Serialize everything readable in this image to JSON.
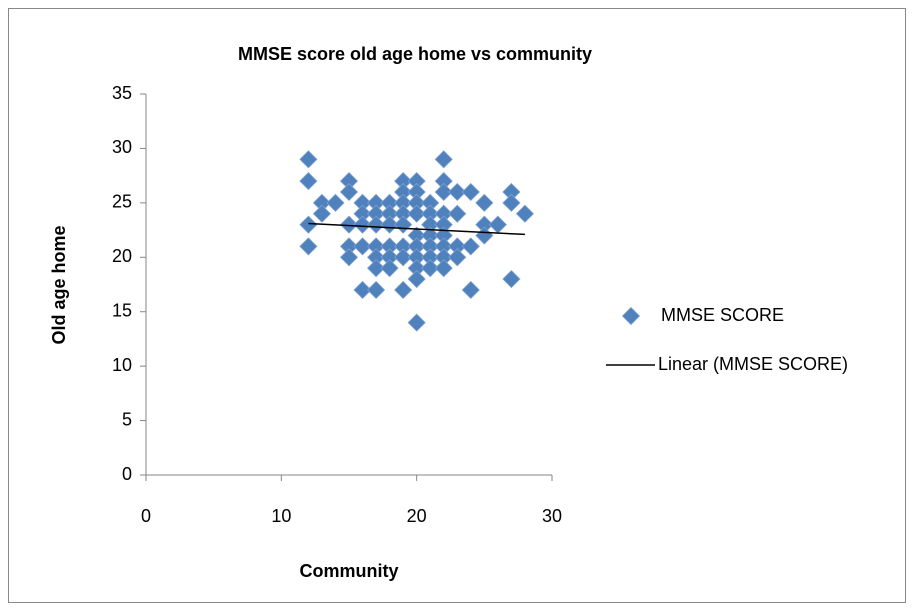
{
  "chart_data": {
    "type": "scatter",
    "title": "MMSE score old age home vs community",
    "x_label": "Community",
    "y_label": "Old age home",
    "xlim": [
      0,
      30
    ],
    "xticks": [
      0,
      10,
      20,
      30
    ],
    "ylim": [
      0,
      35
    ],
    "yticks": [
      0,
      5,
      10,
      15,
      20,
      25,
      30,
      35
    ],
    "series": [
      {
        "name": "MMSE SCORE",
        "color": "#4f81bd",
        "x": [
          12,
          12,
          12,
          12,
          13,
          13,
          14,
          15,
          15,
          15,
          15,
          15,
          16,
          16,
          16,
          16,
          16,
          17,
          17,
          17,
          17,
          17,
          17,
          17,
          18,
          18,
          18,
          18,
          18,
          18,
          19,
          19,
          19,
          19,
          19,
          19,
          19,
          19,
          20,
          20,
          20,
          20,
          20,
          20,
          20,
          20,
          20,
          20,
          21,
          21,
          21,
          21,
          21,
          21,
          21,
          22,
          22,
          22,
          22,
          22,
          22,
          22,
          22,
          22,
          23,
          23,
          23,
          23,
          24,
          24,
          24,
          25,
          25,
          25,
          26,
          27,
          27,
          27,
          28
        ],
        "values": [
          29,
          27,
          23,
          21,
          25,
          24,
          25,
          27,
          26,
          23,
          21,
          20,
          25,
          24,
          23,
          21,
          17,
          25,
          24,
          23,
          21,
          20,
          19,
          17,
          25,
          24,
          23,
          21,
          20,
          19,
          27,
          26,
          25,
          24,
          23,
          21,
          20,
          17,
          27,
          26,
          25,
          24,
          22,
          21,
          20,
          19,
          18,
          14,
          25,
          24,
          23,
          22,
          21,
          20,
          19,
          29,
          27,
          26,
          24,
          23,
          22,
          21,
          20,
          19,
          26,
          24,
          21,
          20,
          26,
          21,
          17,
          25,
          23,
          22,
          23,
          26,
          25,
          18,
          24
        ]
      }
    ],
    "trendline": {
      "name": "Linear (MMSE SCORE)",
      "color": "#000000",
      "x": [
        12,
        28
      ],
      "values": [
        23.1,
        22.1
      ]
    }
  }
}
